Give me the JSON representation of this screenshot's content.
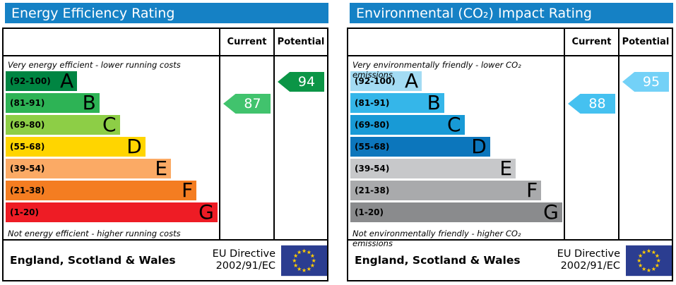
{
  "colors": {
    "header_bar": "#1581c5",
    "table_border": "#000000",
    "eu_flag_blue": "#2b3d90",
    "eu_flag_stars": "#ffcc00"
  },
  "panels": [
    {
      "title": "Energy Efficiency Rating",
      "columns": {
        "current": "Current",
        "potential": "Potential"
      },
      "top_note": "Very energy efficient - lower running costs",
      "bottom_note": "Not energy efficient - higher running costs",
      "bands": [
        {
          "letter": "A",
          "range": "(92-100)",
          "color": "#008542",
          "width_pct": 33.5
        },
        {
          "letter": "B",
          "range": "(81-91)",
          "color": "#2db355",
          "width_pct": 44.0
        },
        {
          "letter": "C",
          "range": "(69-80)",
          "color": "#8dce46",
          "width_pct": 53.5
        },
        {
          "letter": "D",
          "range": "(55-68)",
          "color": "#ffd500",
          "width_pct": 65.5
        },
        {
          "letter": "E",
          "range": "(39-54)",
          "color": "#fbaa65",
          "width_pct": 77.5
        },
        {
          "letter": "F",
          "range": "(21-38)",
          "color": "#f47d21",
          "width_pct": 89.5
        },
        {
          "letter": "G",
          "range": "(1-20)",
          "color": "#ee1c25",
          "width_pct": 99.3
        }
      ],
      "current": {
        "value": "87",
        "color": "#41c36d",
        "band_index": 1
      },
      "potential": {
        "value": "94",
        "color": "#0b9546",
        "band_index": 0
      },
      "footer": {
        "region": "England, Scotland & Wales",
        "directive_line1": "EU Directive",
        "directive_line2": "2002/91/EC"
      }
    },
    {
      "title": "Environmental (CO₂) Impact Rating",
      "columns": {
        "current": "Current",
        "potential": "Potential"
      },
      "top_note": "Very environmentally friendly - lower CO₂ emissions",
      "bottom_note": "Not environmentally friendly - higher CO₂ emissions",
      "bands": [
        {
          "letter": "A",
          "range": "(92-100)",
          "color": "#a3dbf3",
          "width_pct": 33.5
        },
        {
          "letter": "B",
          "range": "(81-91)",
          "color": "#35b6e9",
          "width_pct": 44.0
        },
        {
          "letter": "C",
          "range": "(69-80)",
          "color": "#189ad6",
          "width_pct": 53.5
        },
        {
          "letter": "D",
          "range": "(55-68)",
          "color": "#0c76bc",
          "width_pct": 65.5
        },
        {
          "letter": "E",
          "range": "(39-54)",
          "color": "#c7c8ca",
          "width_pct": 77.5
        },
        {
          "letter": "F",
          "range": "(21-38)",
          "color": "#a9aaac",
          "width_pct": 89.5
        },
        {
          "letter": "G",
          "range": "(1-20)",
          "color": "#8a8b8d",
          "width_pct": 99.3
        }
      ],
      "current": {
        "value": "88",
        "color": "#45c1f0",
        "band_index": 1
      },
      "potential": {
        "value": "95",
        "color": "#73d1f7",
        "band_index": 0
      },
      "footer": {
        "region": "England, Scotland & Wales",
        "directive_line1": "EU Directive",
        "directive_line2": "2002/91/EC"
      }
    }
  ],
  "chart_data": [
    {
      "type": "bar",
      "title": "Energy Efficiency Rating",
      "categories": [
        "A",
        "B",
        "C",
        "D",
        "E",
        "F",
        "G"
      ],
      "band_ranges": [
        "92-100",
        "81-91",
        "69-80",
        "55-68",
        "39-54",
        "21-38",
        "1-20"
      ],
      "series": [
        {
          "name": "Current",
          "values": [
            87
          ],
          "band": "B"
        },
        {
          "name": "Potential",
          "values": [
            94
          ],
          "band": "A"
        }
      ],
      "top_label": "Very energy efficient - lower running costs",
      "bottom_label": "Not energy efficient - higher running costs",
      "footnote": "England, Scotland & Wales — EU Directive 2002/91/EC",
      "xlim": [
        1,
        100
      ],
      "legend_position": "top-right-columns"
    },
    {
      "type": "bar",
      "title": "Environmental (CO₂) Impact Rating",
      "categories": [
        "A",
        "B",
        "C",
        "D",
        "E",
        "F",
        "G"
      ],
      "band_ranges": [
        "92-100",
        "81-91",
        "69-80",
        "55-68",
        "39-54",
        "21-38",
        "1-20"
      ],
      "series": [
        {
          "name": "Current",
          "values": [
            88
          ],
          "band": "B"
        },
        {
          "name": "Potential",
          "values": [
            95
          ],
          "band": "A"
        }
      ],
      "top_label": "Very environmentally friendly - lower CO₂ emissions",
      "bottom_label": "Not environmentally friendly - higher CO₂ emissions",
      "footnote": "England, Scotland & Wales — EU Directive 2002/91/EC",
      "xlim": [
        1,
        100
      ],
      "legend_position": "top-right-columns"
    }
  ]
}
